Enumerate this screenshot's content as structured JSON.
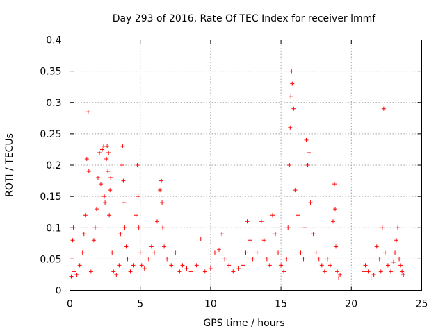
{
  "chart_data": {
    "type": "scatter",
    "title": "Day 293 of 2016, Rate Of TEC Index for receiver lmmf",
    "xlabel": "GPS time / hours",
    "ylabel": "ROTI / TECUs",
    "xlim": [
      0,
      25
    ],
    "ylim": [
      0,
      0.4
    ],
    "grid": true,
    "marker": "+",
    "color": "#ff0000",
    "xticks": [
      {
        "value": 0,
        "label": "0"
      },
      {
        "value": 5,
        "label": "5"
      },
      {
        "value": 10,
        "label": "10"
      },
      {
        "value": 15,
        "label": "15"
      },
      {
        "value": 20,
        "label": "20"
      },
      {
        "value": 25,
        "label": "25"
      }
    ],
    "yticks": [
      {
        "value": 0,
        "label": "0"
      },
      {
        "value": 0.05,
        "label": "0.05"
      },
      {
        "value": 0.1,
        "label": "0.1"
      },
      {
        "value": 0.15,
        "label": "0.15"
      },
      {
        "value": 0.2,
        "label": "0.2"
      },
      {
        "value": 0.25,
        "label": "0.25"
      },
      {
        "value": 0.3,
        "label": "0.3"
      },
      {
        "value": 0.35,
        "label": "0.35"
      },
      {
        "value": 0.4,
        "label": "0.4"
      }
    ],
    "series": [
      {
        "name": "ROTI",
        "x": [
          0.1,
          0.15,
          0.2,
          0.25,
          0.3,
          0.5,
          0.7,
          0.9,
          1.0,
          1.1,
          1.2,
          1.3,
          1.35,
          1.5,
          1.7,
          1.8,
          1.9,
          2.0,
          2.1,
          2.2,
          2.3,
          2.4,
          2.45,
          2.5,
          2.6,
          2.65,
          2.7,
          2.75,
          2.8,
          2.85,
          2.9,
          3.0,
          3.1,
          3.3,
          3.5,
          3.6,
          3.7,
          3.75,
          3.8,
          3.85,
          3.9,
          4.0,
          4.1,
          4.3,
          4.5,
          4.7,
          4.8,
          4.85,
          4.9,
          5.0,
          5.1,
          5.3,
          5.6,
          5.8,
          6.0,
          6.2,
          6.4,
          6.5,
          6.55,
          6.6,
          6.7,
          6.9,
          7.2,
          7.5,
          7.8,
          8.0,
          8.3,
          8.6,
          9.0,
          9.3,
          9.6,
          10.0,
          10.3,
          10.6,
          10.8,
          11.0,
          11.3,
          11.6,
          12.0,
          12.3,
          12.5,
          12.6,
          12.8,
          13.0,
          13.3,
          13.6,
          13.8,
          14.0,
          14.2,
          14.4,
          14.6,
          14.8,
          15.0,
          15.2,
          15.4,
          15.5,
          15.6,
          15.65,
          15.7,
          15.75,
          15.8,
          15.9,
          16.0,
          16.2,
          16.4,
          16.6,
          16.7,
          16.8,
          16.9,
          17.0,
          17.1,
          17.3,
          17.5,
          17.7,
          17.9,
          18.1,
          18.3,
          18.5,
          18.7,
          18.8,
          18.85,
          18.9,
          19.0,
          19.1,
          19.2,
          20.9,
          21.0,
          21.2,
          21.4,
          21.6,
          21.8,
          22.0,
          22.1,
          22.2,
          22.3,
          22.4,
          22.6,
          22.8,
          23.0,
          23.1,
          23.2,
          23.3,
          23.4,
          23.5,
          23.6,
          23.7
        ],
        "y": [
          0.022,
          0.05,
          0.08,
          0.1,
          0.03,
          0.025,
          0.04,
          0.06,
          0.09,
          0.12,
          0.21,
          0.285,
          0.19,
          0.03,
          0.08,
          0.1,
          0.13,
          0.18,
          0.22,
          0.17,
          0.225,
          0.23,
          0.15,
          0.14,
          0.21,
          0.23,
          0.19,
          0.22,
          0.12,
          0.16,
          0.18,
          0.06,
          0.03,
          0.025,
          0.04,
          0.09,
          0.2,
          0.23,
          0.175,
          0.14,
          0.1,
          0.07,
          0.05,
          0.03,
          0.04,
          0.12,
          0.2,
          0.15,
          0.1,
          0.06,
          0.04,
          0.035,
          0.05,
          0.07,
          0.06,
          0.11,
          0.16,
          0.175,
          0.14,
          0.1,
          0.07,
          0.05,
          0.04,
          0.06,
          0.03,
          0.04,
          0.035,
          0.03,
          0.04,
          0.082,
          0.03,
          0.035,
          0.06,
          0.065,
          0.09,
          0.05,
          0.04,
          0.03,
          0.035,
          0.04,
          0.06,
          0.11,
          0.08,
          0.05,
          0.06,
          0.11,
          0.08,
          0.05,
          0.04,
          0.12,
          0.09,
          0.06,
          0.04,
          0.03,
          0.05,
          0.1,
          0.2,
          0.26,
          0.31,
          0.35,
          0.33,
          0.29,
          0.16,
          0.12,
          0.06,
          0.05,
          0.1,
          0.24,
          0.2,
          0.22,
          0.14,
          0.09,
          0.06,
          0.05,
          0.04,
          0.03,
          0.05,
          0.04,
          0.11,
          0.17,
          0.13,
          0.07,
          0.03,
          0.02,
          0.025,
          0.03,
          0.04,
          0.03,
          0.02,
          0.025,
          0.07,
          0.05,
          0.03,
          0.1,
          0.29,
          0.06,
          0.04,
          0.03,
          0.045,
          0.06,
          0.08,
          0.1,
          0.05,
          0.04,
          0.03,
          0.025
        ]
      }
    ]
  }
}
